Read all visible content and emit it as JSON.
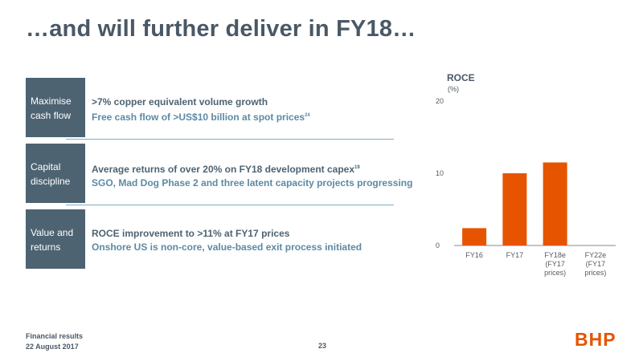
{
  "title": "…and will further deliver in FY18…",
  "rows": [
    {
      "label": "Maximise cash flow",
      "line1": ">7% copper equivalent volume growth",
      "line2": "Free cash flow of >US$10 billion at spot prices",
      "line2_sup": "24"
    },
    {
      "label": "Capital discipline",
      "line1": "Average returns of over 20% on FY18 development capex",
      "line1_sup": "19",
      "line2": "SGO, Mad Dog Phase 2 and three latent capacity projects progressing"
    },
    {
      "label": "Value and returns",
      "line1": "ROCE improvement to >11% at FY17 prices",
      "line2": "Onshore US is non-core, value-based exit process initiated"
    }
  ],
  "chart_data": {
    "type": "bar",
    "title": "ROCE",
    "ylabel": "(%)",
    "categories": [
      "FY16",
      "FY17",
      "FY18e (FY17 prices)",
      "FY22e (FY17 prices)"
    ],
    "category_lines": [
      [
        "FY16"
      ],
      [
        "FY17"
      ],
      [
        "FY18e",
        "(FY17",
        "prices)"
      ],
      [
        "FY22e",
        "(FY17",
        "prices)"
      ]
    ],
    "values": [
      2.4,
      10.0,
      11.5,
      null
    ],
    "yticks": [
      0,
      10,
      20
    ],
    "ylim": [
      0,
      20
    ],
    "bar_color": "#e65400"
  },
  "footer": {
    "line1": "Financial results",
    "line2": "22 August 2017",
    "page": "23",
    "logo": "BHP"
  },
  "colors": {
    "label_bg": "#4d6372",
    "accent": "#e65400",
    "divider": "#7fb0c8"
  }
}
